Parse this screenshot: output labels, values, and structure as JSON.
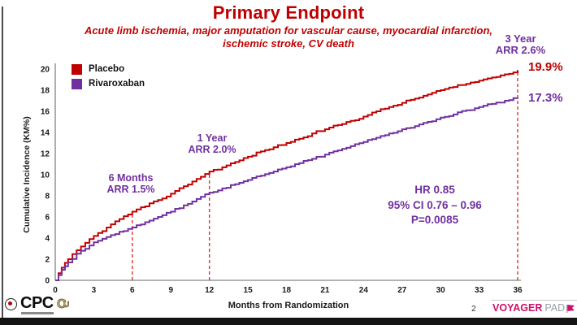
{
  "slide": {
    "title": "Primary Endpoint",
    "subtitle_line1": "Acute limb ischemia, major amputation for vascular cause, myocardial infarction,",
    "subtitle_line2": "ischemic stroke, CV death"
  },
  "theme": {
    "title_red": "#C00000",
    "placebo_red": "#C00000",
    "rivaroxaban_purple": "#7030A0",
    "dashed_marker_red": "#DD3333",
    "axis_gray": "#999999",
    "voyager_magenta": "#CE0F69",
    "pad_gray": "#9aa0a4",
    "cu_gold": "#CFB87C"
  },
  "legend": {
    "items": [
      {
        "label": "Placebo",
        "color": "#C00000"
      },
      {
        "label": "Rivaroxaban",
        "color": "#7030A0"
      }
    ]
  },
  "annotations": {
    "six_months_line1": "6 Months",
    "six_months_line2": "ARR 1.5%",
    "one_year_line1": "1 Year",
    "one_year_line2": "ARR 2.0%",
    "three_year_line1": "3 Year",
    "three_year_line2": "ARR 2.6%",
    "placebo_end": "19.9%",
    "rivaroxaban_end": "17.3%",
    "hr_line1": "HR 0.85",
    "hr_line2": "95% CI 0.76 – 0.96",
    "hr_line3": "P=0.0085"
  },
  "footer": {
    "cpc_label": "CPC",
    "page_number": "2",
    "voyager_label": "VOYAGER",
    "pad_label": "PAD"
  },
  "chart_data": {
    "type": "line",
    "subtype": "kaplan-meier-cumulative-incidence",
    "title": "Primary Endpoint",
    "subtitle": "Acute limb ischemia, major amputation for vascular cause, myocardial infarction, ischemic stroke, CV death",
    "xlabel": "Months from Randomization",
    "ylabel": "Cumulative Incidence (KM%)",
    "xlim": [
      0,
      36
    ],
    "ylim": [
      0,
      20
    ],
    "x_ticks": [
      0,
      3,
      6,
      9,
      12,
      15,
      18,
      21,
      24,
      27,
      30,
      33,
      36
    ],
    "y_ticks": [
      0,
      2,
      4,
      6,
      8,
      10,
      12,
      14,
      16,
      18,
      20
    ],
    "grid": false,
    "legend_position": "top-left",
    "x": [
      0,
      0.5,
      1,
      2,
      3,
      4,
      5,
      6,
      7,
      8,
      9,
      10,
      11,
      12,
      13,
      14,
      15,
      16,
      17,
      18,
      19,
      20,
      21,
      22,
      23,
      24,
      25,
      26,
      27,
      28,
      29,
      30,
      31,
      32,
      33,
      34,
      35,
      36
    ],
    "series": [
      {
        "name": "Placebo",
        "color": "#C00000",
        "values": [
          0,
          1.2,
          2.0,
          3.2,
          4.2,
          5.0,
          5.8,
          6.5,
          7.0,
          7.6,
          8.2,
          8.9,
          9.6,
          10.3,
          10.7,
          11.2,
          11.7,
          12.2,
          12.6,
          13.0,
          13.4,
          13.9,
          14.3,
          14.7,
          15.1,
          15.5,
          16.0,
          16.4,
          16.8,
          17.2,
          17.6,
          18.0,
          18.3,
          18.6,
          18.9,
          19.2,
          19.5,
          19.9
        ]
      },
      {
        "name": "Rivaroxaban",
        "color": "#7030A0",
        "values": [
          0,
          1.0,
          1.7,
          2.8,
          3.6,
          4.1,
          4.6,
          5.0,
          5.5,
          6.0,
          6.5,
          7.1,
          7.7,
          8.3,
          8.7,
          9.1,
          9.5,
          9.9,
          10.3,
          10.7,
          11.1,
          11.5,
          11.9,
          12.3,
          12.7,
          13.1,
          13.5,
          13.9,
          14.3,
          14.6,
          15.0,
          15.4,
          15.7,
          16.1,
          16.4,
          16.7,
          17.0,
          17.3
        ]
      }
    ],
    "dashed_markers": [
      {
        "month": 6,
        "top_pct": 6.5,
        "label": "6 Months ARR 1.5%"
      },
      {
        "month": 12,
        "top_pct": 10.3,
        "label": "1 Year ARR 2.0%"
      },
      {
        "month": 36,
        "top_pct": 19.9,
        "label": "3 Year ARR 2.6%"
      }
    ],
    "end_labels": [
      {
        "series": "Placebo",
        "text": "19.9%"
      },
      {
        "series": "Rivaroxaban",
        "text": "17.3%"
      }
    ],
    "stats_annotation": [
      "HR 0.85",
      "95% CI 0.76 – 0.96",
      "P=0.0085"
    ]
  }
}
